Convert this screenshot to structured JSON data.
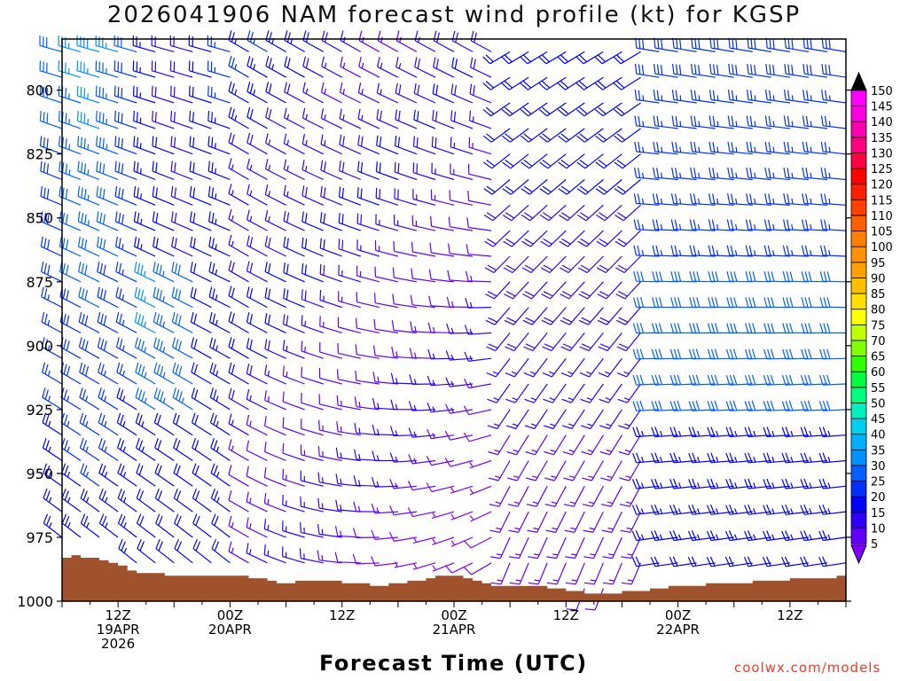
{
  "chart_data": {
    "type": "wind-profile",
    "title": "2026041906 NAM forecast wind profile (kt) for KGSP",
    "xlabel": "Forecast Time (UTC)",
    "ylabel": "",
    "units": "kt",
    "yaxis": {
      "range": [
        780,
        1000
      ],
      "inverted": true,
      "ticks": [
        "800",
        "825",
        "850",
        "875",
        "900",
        "925",
        "950",
        "975",
        "1000"
      ]
    },
    "xaxis": {
      "range_hours": [
        0,
        84
      ],
      "ticks": [
        {
          "hour": 6,
          "lines": [
            "12Z",
            "19APR",
            "2026"
          ]
        },
        {
          "hour": 18,
          "lines": [
            "00Z",
            "20APR"
          ]
        },
        {
          "hour": 30,
          "lines": [
            "12Z"
          ]
        },
        {
          "hour": 42,
          "lines": [
            "00Z",
            "21APR"
          ]
        },
        {
          "hour": 54,
          "lines": [
            "12Z"
          ]
        },
        {
          "hour": 66,
          "lines": [
            "00Z",
            "22APR"
          ]
        },
        {
          "hour": 78,
          "lines": [
            "12Z"
          ]
        }
      ]
    },
    "colorbar": {
      "labels": [
        "5",
        "10",
        "15",
        "20",
        "25",
        "30",
        "35",
        "40",
        "45",
        "50",
        "55",
        "60",
        "65",
        "70",
        "75",
        "80",
        "85",
        "90",
        "95",
        "100",
        "105",
        "110",
        "115",
        "120",
        "125",
        "130",
        "135",
        "140",
        "145",
        "150"
      ],
      "colors": [
        "#8000ff",
        "#6000ff",
        "#3000ff",
        "#0000ff",
        "#0030ff",
        "#0060ff",
        "#0090ff",
        "#00b0ff",
        "#00d0f0",
        "#00f0c0",
        "#00ff80",
        "#00ff40",
        "#30ff00",
        "#80ff00",
        "#c0ff00",
        "#ffff00",
        "#ffe000",
        "#ffc000",
        "#ffa000",
        "#ff9000",
        "#ff8000",
        "#ff6000",
        "#ff4000",
        "#ff2000",
        "#ff0000",
        "#ff0040",
        "#ff0080",
        "#ff00b0",
        "#ff00e0",
        "#ff00ff"
      ],
      "top_arrow_color": "#000000",
      "bottom_arrow_color": "#8000ff"
    },
    "surface_pressure": {
      "hours": [
        0,
        1,
        2,
        3,
        4,
        5,
        6,
        7,
        8,
        9,
        10,
        11,
        12,
        13,
        14,
        15,
        16,
        17,
        18,
        19,
        20,
        21,
        22,
        23,
        24,
        25,
        26,
        27,
        28,
        29,
        30,
        31,
        32,
        33,
        34,
        35,
        36,
        37,
        38,
        39,
        40,
        41,
        42,
        43,
        44,
        45,
        46,
        47,
        48,
        49,
        50,
        51,
        52,
        53,
        54,
        55,
        56,
        57,
        58,
        59,
        60,
        61,
        62,
        63,
        64,
        65,
        66,
        67,
        68,
        69,
        70,
        71,
        72,
        73,
        74,
        75,
        76,
        77,
        78,
        79,
        80,
        81,
        82,
        83,
        84
      ],
      "values": [
        983,
        982,
        983,
        983,
        984,
        985,
        986,
        988,
        989,
        989,
        989,
        990,
        990,
        990,
        990,
        990,
        990,
        990,
        990,
        990,
        991,
        991,
        992,
        993,
        993,
        992,
        992,
        992,
        992,
        992,
        993,
        993,
        993,
        994,
        994,
        993,
        993,
        992,
        992,
        991,
        990,
        990,
        990,
        991,
        992,
        993,
        994,
        994,
        994,
        994,
        994,
        994,
        995,
        995,
        996,
        996,
        997,
        997,
        997,
        997,
        996,
        996,
        996,
        995,
        995,
        994,
        994,
        994,
        994,
        993,
        993,
        993,
        993,
        993,
        992,
        992,
        992,
        992,
        991,
        991,
        991,
        991,
        991,
        990,
        990
      ],
      "fill_color": "#a0522d"
    },
    "wind_field": {
      "hour_step": 2,
      "levels": [
        785,
        795,
        805,
        815,
        825,
        835,
        845,
        855,
        865,
        875,
        885,
        895,
        905,
        915,
        925,
        935,
        945,
        955,
        965,
        975,
        985,
        995
      ],
      "description": "wind barbs: speed 5-45 kt, westerly/northwesterly aloft, southerly to southwesterly near surface after hour 20"
    }
  },
  "credit": "coolwx.com/models"
}
